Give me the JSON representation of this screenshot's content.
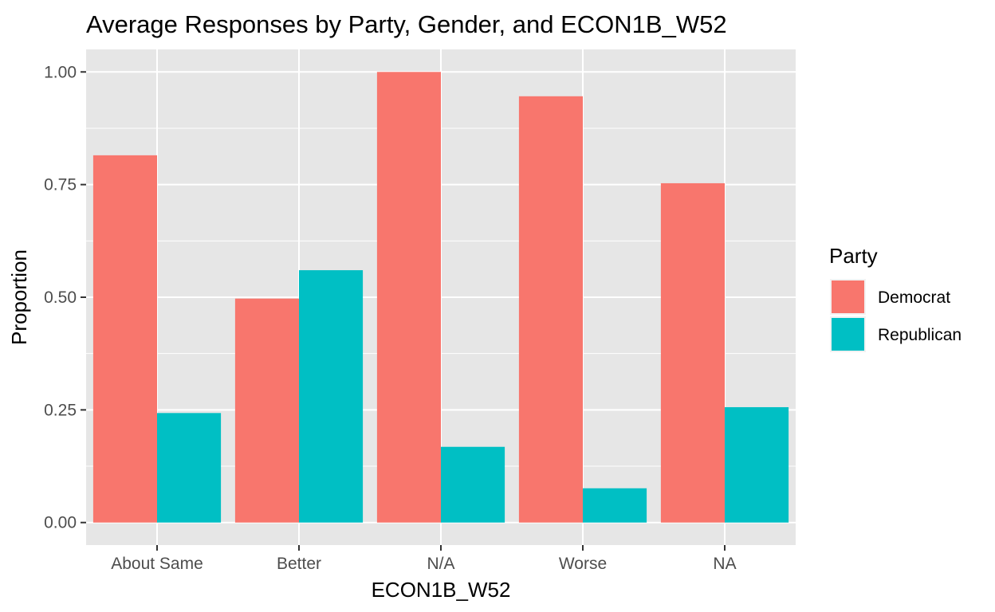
{
  "chart_data": {
    "type": "bar",
    "title": "Average Responses by Party, Gender, and ECON1B_W52",
    "xlabel": "ECON1B_W52",
    "ylabel": "Proportion",
    "categories": [
      "About Same",
      "Better",
      "N/A",
      "Worse",
      "NA"
    ],
    "series": [
      {
        "name": "Democrat",
        "color": "#F8766D",
        "values": [
          0.815,
          0.497,
          1.0,
          0.946,
          0.753
        ]
      },
      {
        "name": "Republican",
        "color": "#00BFC4",
        "values": [
          0.243,
          0.56,
          0.168,
          0.076,
          0.256
        ]
      }
    ],
    "yticks": [
      "0.00",
      "0.25",
      "0.50",
      "0.75",
      "1.00"
    ],
    "ylim": [
      -0.05,
      1.05
    ],
    "legend": {
      "title": "Party",
      "position": "right"
    },
    "grid": true,
    "panel_background": "#EBEBEB"
  }
}
